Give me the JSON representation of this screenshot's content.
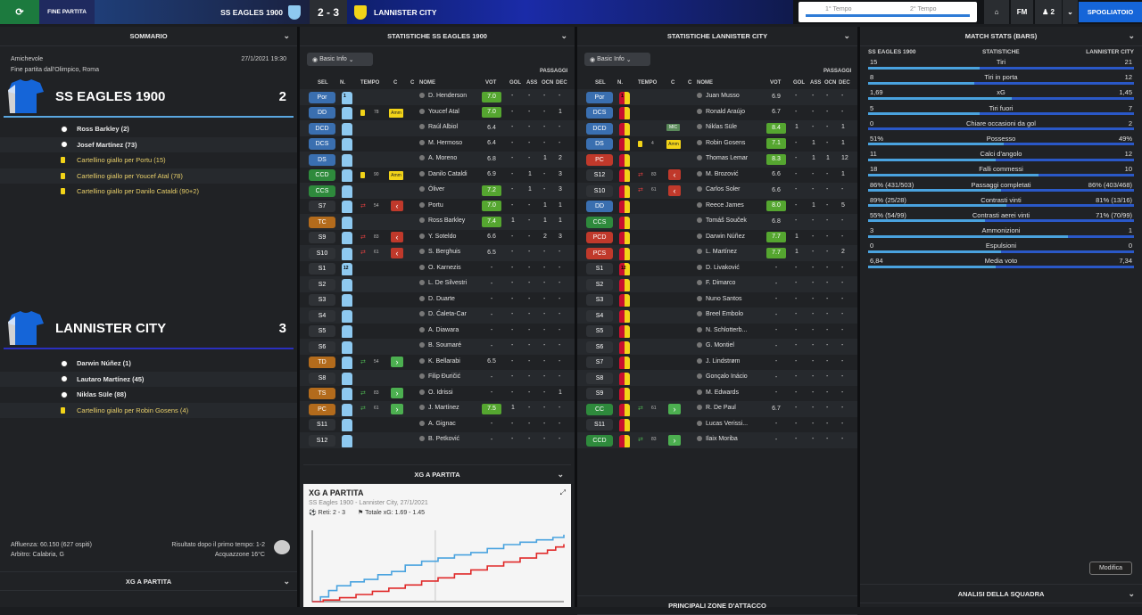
{
  "top": {
    "status": "FINE PARTITA",
    "home_team": "SS EAGLES 1900",
    "score": "2 - 3",
    "away_team": "LANNISTER CITY",
    "timeline_first": "1° Tempo",
    "timeline_second": "2° Tempo",
    "fm_label": "FM",
    "count_label": "2",
    "continue_label": "SPOGLIATOIO"
  },
  "summary": {
    "title": "SOMMARIO",
    "type": "Amichevole",
    "datetime": "27/1/2021 19:30",
    "venue": "Fine partita dall'Olimpico, Roma",
    "home": {
      "name": "SS EAGLES 1900",
      "goals": "2",
      "events": [
        {
          "kind": "goal",
          "text": "Ross Barkley (2)"
        },
        {
          "kind": "goal",
          "text": "Josef Martínez (73)"
        },
        {
          "kind": "card",
          "text": "Cartellino giallo per Portu (15)"
        },
        {
          "kind": "card",
          "text": "Cartellino giallo per Youcef Atal (78)"
        },
        {
          "kind": "card",
          "text": "Cartellino giallo per Danilo Cataldi (90+2)"
        }
      ]
    },
    "away": {
      "name": "LANNISTER CITY",
      "goals": "3",
      "events": [
        {
          "kind": "goal",
          "text": "Darwin Núñez (1)"
        },
        {
          "kind": "goal",
          "text": "Lautaro Martínez (45)"
        },
        {
          "kind": "goal",
          "text": "Niklas Süle (88)"
        },
        {
          "kind": "card",
          "text": "Cartellino giallo per Robin Gosens (4)"
        }
      ]
    },
    "attendance": "Affluenza: 60.150 (627 ospiti)",
    "referee": "Arbitro: Calabria, G",
    "halftime": "Risultato dopo il primo tempo: 1-2",
    "weather": "Acquazzone 16°C",
    "xg_title": "XG A PARTITA"
  },
  "home_stats": {
    "title": "STATISTICHE SS EAGLES 1900",
    "filter": "Basic Info",
    "columns": {
      "sel": "SEL",
      "n": "N.",
      "tempo": "TEMPO",
      "c1": "C",
      "c2": "C",
      "nome": "NOME",
      "vot": "VOT",
      "gol": "GOL",
      "ass": "ASS",
      "ocn": "OCN",
      "dec": "DEC",
      "passaggi": "PASSAGGI"
    },
    "rows": [
      {
        "pos": "Por",
        "n": "1",
        "name": "D. Henderson",
        "vot": "7.0",
        "gol": "-",
        "ass": "-",
        "ocn": "-",
        "dec": "-"
      },
      {
        "pos": "DD",
        "n": "",
        "mt": "78",
        "card": true,
        "name": "Youcef Atal",
        "vot": "7.0",
        "gol": "-",
        "ass": "-",
        "ocn": "-",
        "dec": "1"
      },
      {
        "pos": "DCD",
        "n": "",
        "name": "Raúl Albiol",
        "vot": "6.4",
        "gol": "-",
        "ass": "-",
        "ocn": "-",
        "dec": "-"
      },
      {
        "pos": "DCS",
        "n": "",
        "name": "M. Hermoso",
        "vot": "6.4",
        "gol": "-",
        "ass": "-",
        "ocn": "-",
        "dec": "-"
      },
      {
        "pos": "DS",
        "n": "",
        "name": "A. Moreno",
        "vot": "6.8",
        "gol": "-",
        "ass": "-",
        "ocn": "1",
        "dec": "2"
      },
      {
        "pos": "CCD",
        "n": "",
        "mt": "90",
        "card": true,
        "name": "Danilo Cataldi",
        "vot": "6.9",
        "gol": "-",
        "ass": "1",
        "ocn": "-",
        "dec": "3"
      },
      {
        "pos": "CCS",
        "n": "",
        "name": "Óliver",
        "vot": "7.2",
        "gol": "-",
        "ass": "1",
        "ocn": "-",
        "dec": "3"
      },
      {
        "pos": "S7",
        "n": "",
        "mt": "54",
        "subout": true,
        "name": "Portu",
        "vot": "7.0",
        "gol": "-",
        "ass": "-",
        "ocn": "1",
        "dec": "1"
      },
      {
        "pos": "TC",
        "n": "",
        "name": "Ross Barkley",
        "vot": "7.4",
        "gol": "1",
        "ass": "-",
        "ocn": "1",
        "dec": "1"
      },
      {
        "pos": "S9",
        "n": "",
        "mt": "83",
        "subout": true,
        "name": "Y. Soteldo",
        "vot": "6.6",
        "gol": "-",
        "ass": "-",
        "ocn": "2",
        "dec": "3"
      },
      {
        "pos": "S10",
        "n": "",
        "mt": "61",
        "subout": true,
        "name": "S. Berghuis",
        "vot": "6.5",
        "gol": "-",
        "ass": "-",
        "ocn": "-",
        "dec": "-"
      },
      {
        "pos": "S1",
        "n": "12",
        "name": "O. Karnezis",
        "vot": "-",
        "gol": "-",
        "ass": "-",
        "ocn": "-",
        "dec": "-"
      },
      {
        "pos": "S2",
        "n": "",
        "name": "L. De Silvestri",
        "vot": "-",
        "gol": "-",
        "ass": "-",
        "ocn": "-",
        "dec": "-"
      },
      {
        "pos": "S3",
        "n": "",
        "name": "D. Duarte",
        "vot": "-",
        "gol": "-",
        "ass": "-",
        "ocn": "-",
        "dec": "-"
      },
      {
        "pos": "S4",
        "n": "",
        "name": "D. Ćaleta-Car",
        "vot": "-",
        "gol": "-",
        "ass": "-",
        "ocn": "-",
        "dec": "-"
      },
      {
        "pos": "S5",
        "n": "",
        "name": "A. Diawara",
        "vot": "-",
        "gol": "-",
        "ass": "-",
        "ocn": "-",
        "dec": "-"
      },
      {
        "pos": "S6",
        "n": "",
        "name": "B. Soumaré",
        "vot": "-",
        "gol": "-",
        "ass": "-",
        "ocn": "-",
        "dec": "-"
      },
      {
        "pos": "TD",
        "n": "",
        "mt": "54",
        "subin": true,
        "name": "K. Bellarabi",
        "vot": "6.5",
        "gol": "-",
        "ass": "-",
        "ocn": "-",
        "dec": "-"
      },
      {
        "pos": "S8",
        "n": "",
        "name": "Filip Đuričić",
        "vot": "-",
        "gol": "-",
        "ass": "-",
        "ocn": "-",
        "dec": "-"
      },
      {
        "pos": "TS",
        "n": "",
        "mt": "83",
        "subin": true,
        "name": "O. Idrissi",
        "vot": "-",
        "gol": "-",
        "ass": "-",
        "ocn": "-",
        "dec": "1"
      },
      {
        "pos": "PC",
        "n": "",
        "mt": "61",
        "subin": true,
        "name": "J. Martínez",
        "vot": "7.5",
        "gol": "1",
        "ass": "-",
        "ocn": "-",
        "dec": "-"
      },
      {
        "pos": "S11",
        "n": "",
        "name": "A. Gignac",
        "vot": "-",
        "gol": "-",
        "ass": "-",
        "ocn": "-",
        "dec": "-"
      },
      {
        "pos": "S12",
        "n": "",
        "name": "B. Petković",
        "vot": "-",
        "gol": "-",
        "ass": "-",
        "ocn": "-",
        "dec": "-"
      }
    ]
  },
  "away_stats": {
    "title": "STATISTICHE LANNISTER CITY",
    "filter": "Basic Info",
    "rows": [
      {
        "pos": "Por",
        "n": "1",
        "name": "Juan Musso",
        "vot": "6.9",
        "gol": "-",
        "ass": "-",
        "ocn": "-",
        "dec": "-"
      },
      {
        "pos": "DCS",
        "n": "",
        "name": "Ronald Araújo",
        "vot": "6.7",
        "gol": "-",
        "ass": "-",
        "ocn": "-",
        "dec": "-"
      },
      {
        "pos": "DCD",
        "n": "",
        "tag": "MIC",
        "name": "Niklas Süle",
        "vot": "8.4",
        "gol": "1",
        "ass": "-",
        "ocn": "-",
        "dec": "1"
      },
      {
        "pos": "DS",
        "n": "",
        "mt": "4",
        "card": true,
        "name": "Robin Gosens",
        "vot": "7.1",
        "gol": "-",
        "ass": "1",
        "ocn": "-",
        "dec": "1"
      },
      {
        "pos": "PC",
        "n": "",
        "name": "Thomas Lemar",
        "vot": "8.3",
        "gol": "-",
        "ass": "1",
        "ocn": "1",
        "dec": "12"
      },
      {
        "pos": "S12",
        "n": "",
        "mt": "83",
        "subout": true,
        "name": "M. Brozović",
        "vot": "6.6",
        "gol": "-",
        "ass": "-",
        "ocn": "-",
        "dec": "1"
      },
      {
        "pos": "S10",
        "n": "",
        "mt": "61",
        "subout": true,
        "name": "Carlos Soler",
        "vot": "6.6",
        "gol": "-",
        "ass": "-",
        "ocn": "-",
        "dec": "-"
      },
      {
        "pos": "DD",
        "n": "",
        "name": "Reece James",
        "vot": "8.0",
        "gol": "-",
        "ass": "1",
        "ocn": "-",
        "dec": "5"
      },
      {
        "pos": "CCS",
        "n": "",
        "name": "Tomáš Souček",
        "vot": "6.8",
        "gol": "-",
        "ass": "-",
        "ocn": "-",
        "dec": "-"
      },
      {
        "pos": "PCD",
        "n": "",
        "name": "Darwin Núñez",
        "vot": "7.7",
        "gol": "1",
        "ass": "-",
        "ocn": "-",
        "dec": "-"
      },
      {
        "pos": "PCS",
        "n": "",
        "name": "L. Martínez",
        "vot": "7.7",
        "gol": "1",
        "ass": "-",
        "ocn": "-",
        "dec": "2"
      },
      {
        "pos": "S1",
        "n": "12",
        "name": "D. Livaković",
        "vot": "-",
        "gol": "-",
        "ass": "-",
        "ocn": "-",
        "dec": "-"
      },
      {
        "pos": "S2",
        "n": "",
        "name": "F. Dimarco",
        "vot": "-",
        "gol": "-",
        "ass": "-",
        "ocn": "-",
        "dec": "-"
      },
      {
        "pos": "S3",
        "n": "",
        "name": "Nuno Santos",
        "vot": "-",
        "gol": "-",
        "ass": "-",
        "ocn": "-",
        "dec": "-"
      },
      {
        "pos": "S4",
        "n": "",
        "name": "Breel Embolo",
        "vot": "-",
        "gol": "-",
        "ass": "-",
        "ocn": "-",
        "dec": "-"
      },
      {
        "pos": "S5",
        "n": "",
        "name": "N. Schlotterb...",
        "vot": "-",
        "gol": "-",
        "ass": "-",
        "ocn": "-",
        "dec": "-"
      },
      {
        "pos": "S6",
        "n": "",
        "name": "G. Montiel",
        "vot": "-",
        "gol": "-",
        "ass": "-",
        "ocn": "-",
        "dec": "-"
      },
      {
        "pos": "S7",
        "n": "",
        "name": "J. Lindstrøm",
        "vot": "-",
        "gol": "-",
        "ass": "-",
        "ocn": "-",
        "dec": "-"
      },
      {
        "pos": "S8",
        "n": "",
        "name": "Gonçalo Inácio",
        "vot": "-",
        "gol": "-",
        "ass": "-",
        "ocn": "-",
        "dec": "-"
      },
      {
        "pos": "S9",
        "n": "",
        "name": "M. Edwards",
        "vot": "-",
        "gol": "-",
        "ass": "-",
        "ocn": "-",
        "dec": "-"
      },
      {
        "pos": "CC",
        "n": "",
        "mt": "61",
        "subin": true,
        "name": "R. De Paul",
        "vot": "6.7",
        "gol": "-",
        "ass": "-",
        "ocn": "-",
        "dec": "-"
      },
      {
        "pos": "S11",
        "n": "",
        "name": "Lucas Verissi...",
        "vot": "-",
        "gol": "-",
        "ass": "-",
        "ocn": "-",
        "dec": "-"
      },
      {
        "pos": "CCD",
        "n": "",
        "mt": "83",
        "subin": true,
        "name": "Ilaix Moriba",
        "vot": "-",
        "gol": "-",
        "ass": "-",
        "ocn": "-",
        "dec": "-"
      }
    ],
    "bottom_title": "PRINCIPALI ZONE D'ATTACCO"
  },
  "xg_panel": {
    "header": "XG A PARTITA",
    "title": "XG A PARTITA",
    "subtitle": "SS Eagles 1900 - Lannister City, 27/1/2021",
    "goals": "Reti: 2 - 3",
    "total": "Totale xG: 1.69 - 1.45"
  },
  "chart_data": {
    "type": "line",
    "title": "",
    "xlabel": "",
    "ylabel": "",
    "series": [
      {
        "name": "",
        "color": "#4aa3df",
        "x": [
          0,
          3,
          6,
          9,
          14,
          19,
          24,
          29,
          34,
          40,
          46,
          52,
          58,
          64,
          70,
          76,
          82,
          88,
          92
        ],
        "values": [
          0,
          0.12,
          0.28,
          0.4,
          0.5,
          0.56,
          0.68,
          0.76,
          0.92,
          1.02,
          1.1,
          1.18,
          1.24,
          1.34,
          1.44,
          1.5,
          1.56,
          1.62,
          1.69
        ]
      },
      {
        "name": "",
        "color": "#e02a2a",
        "x": [
          0,
          4,
          10,
          16,
          22,
          28,
          34,
          40,
          46,
          52,
          58,
          64,
          70,
          76,
          82,
          86,
          89,
          92
        ],
        "values": [
          0,
          0.04,
          0.1,
          0.18,
          0.26,
          0.34,
          0.42,
          0.52,
          0.6,
          0.7,
          0.8,
          0.9,
          1.0,
          1.1,
          1.22,
          1.3,
          1.38,
          1.45
        ]
      }
    ],
    "xlim": [
      0,
      92
    ],
    "ylim": [
      0,
      1.8
    ]
  },
  "match_stats": {
    "title": "MATCH STATS (BARS)",
    "home_label": "SS EAGLES 1900",
    "mid_label": "STATISTICHE",
    "away_label": "LANNISTER CITY",
    "rows": [
      {
        "label": "Tiri",
        "home": "15",
        "away": "21",
        "hf": 0.42
      },
      {
        "label": "Tiri in porta",
        "home": "8",
        "away": "12",
        "hf": 0.4
      },
      {
        "label": "xG",
        "home": "1,69",
        "away": "1,45",
        "hf": 0.54
      },
      {
        "label": "Tiri fuori",
        "home": "5",
        "away": "7",
        "hf": 0.42
      },
      {
        "label": "Chiare occasioni da gol",
        "home": "0",
        "away": "2",
        "hf": 0.0
      },
      {
        "label": "Possesso",
        "home": "51%",
        "away": "49%",
        "hf": 0.51
      },
      {
        "label": "Calci d'angolo",
        "home": "11",
        "away": "12",
        "hf": 0.48
      },
      {
        "label": "Falli commessi",
        "home": "18",
        "away": "10",
        "hf": 0.64
      },
      {
        "label": "Passaggi completati",
        "home": "86% (431/503)",
        "away": "86% (403/468)",
        "hf": 0.5
      },
      {
        "label": "Contrasti vinti",
        "home": "89% (25/28)",
        "away": "81% (13/16)",
        "hf": 0.52
      },
      {
        "label": "Contrasti aerei vinti",
        "home": "55% (54/99)",
        "away": "71% (70/99)",
        "hf": 0.44
      },
      {
        "label": "Ammonizioni",
        "home": "3",
        "away": "1",
        "hf": 0.75
      },
      {
        "label": "Espulsioni",
        "home": "0",
        "away": "0",
        "hf": 0.5
      },
      {
        "label": "Media voto",
        "home": "6,84",
        "away": "7,34",
        "hf": 0.48
      }
    ],
    "modify": "Modifica",
    "bottom_title": "ANALISI DELLA SQUADRA"
  },
  "colors": {
    "home": "#5aa7e0",
    "away": "#c8102e",
    "accent": "#1565d8"
  }
}
